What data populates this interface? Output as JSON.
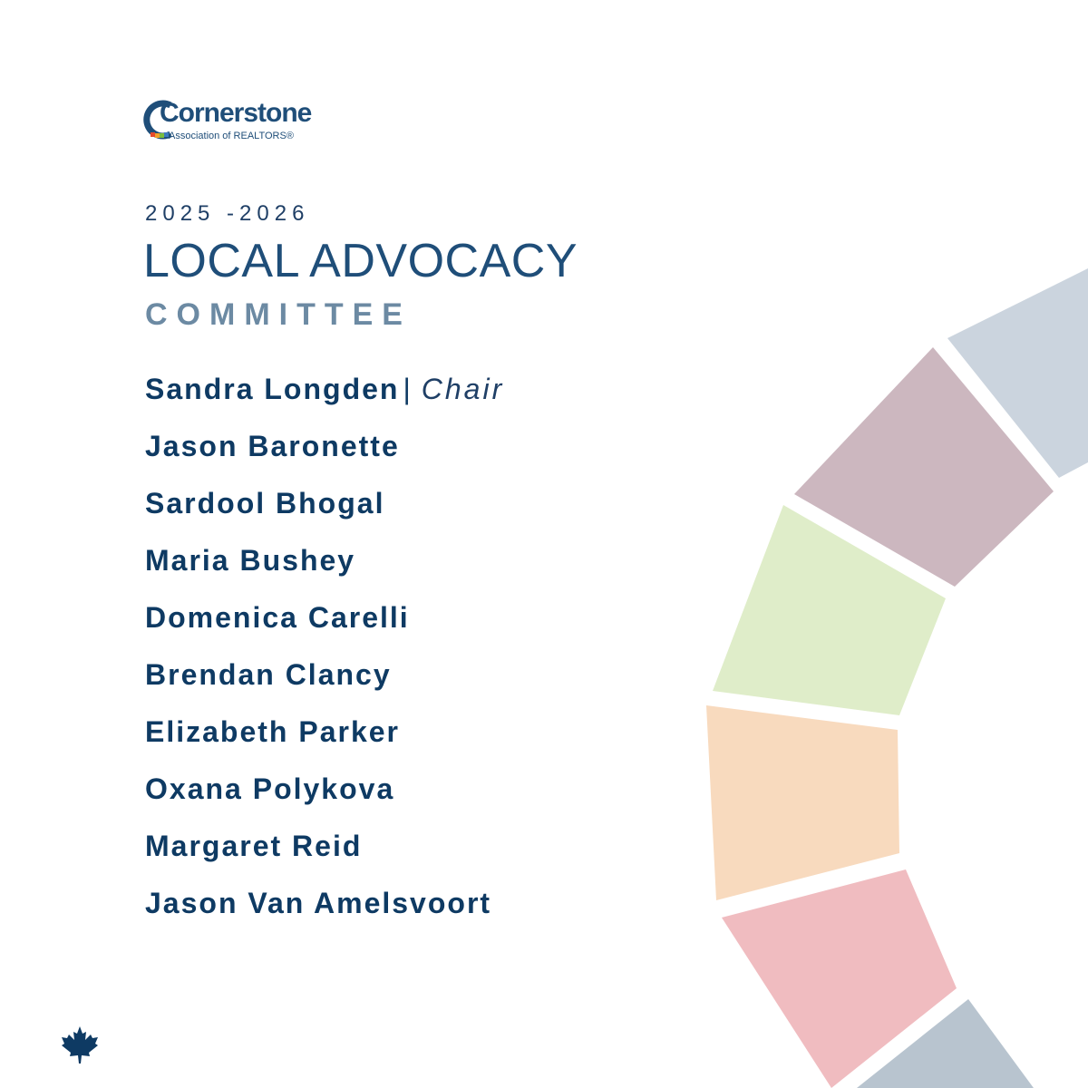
{
  "brand": {
    "name": "Cornerstone",
    "tagline": "Association of REALTORS®"
  },
  "heading": {
    "years": "2025 -2026",
    "title": "LOCAL ADVOCACY",
    "subtitle": "COMMITTEE"
  },
  "members": [
    {
      "name": "Sandra Longden",
      "role": "Chair"
    },
    {
      "name": "Jason Baronette"
    },
    {
      "name": "Sardool Bhogal"
    },
    {
      "name": "Maria Bushey"
    },
    {
      "name": "Domenica Carelli"
    },
    {
      "name": "Brendan Clancy"
    },
    {
      "name": "Elizabeth Parker"
    },
    {
      "name": "Oxana Polykova"
    },
    {
      "name": "Margaret Reid"
    },
    {
      "name": "Jason Van Amelsvoort"
    }
  ],
  "separator": "|",
  "icons": {
    "footer": "maple-leaf-icon"
  },
  "colors": {
    "text": "#0e3a63",
    "subtitle": "#6c8aa3",
    "ring": [
      "#cbd4de",
      "#ccb7bf",
      "#dfedc9",
      "#f8dabe",
      "#f0bcc0",
      "#b8c4cf"
    ]
  }
}
